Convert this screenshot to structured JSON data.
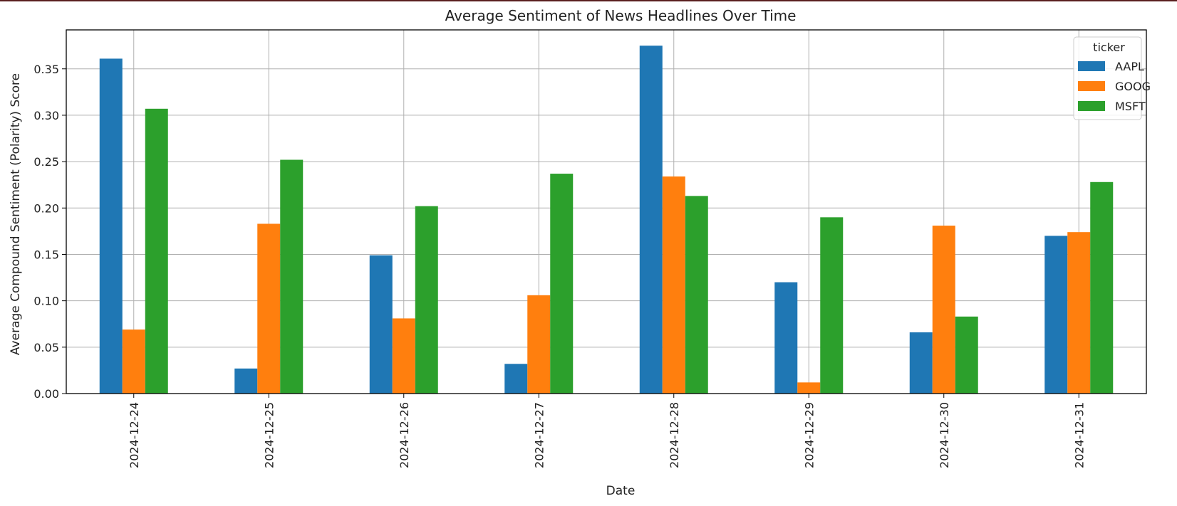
{
  "chart_data": {
    "type": "bar",
    "title": "Average Sentiment of News Headlines Over Time",
    "xlabel": "Date",
    "ylabel": "Average Compound Sentiment (Polarity) Score",
    "categories": [
      "2024-12-24",
      "2024-12-25",
      "2024-12-26",
      "2024-12-27",
      "2024-12-28",
      "2024-12-29",
      "2024-12-30",
      "2024-12-31"
    ],
    "series": [
      {
        "name": "AAPL",
        "color": "#1f77b4",
        "values": [
          0.361,
          0.027,
          0.149,
          0.032,
          0.375,
          0.12,
          0.066,
          0.17
        ]
      },
      {
        "name": "GOOG",
        "color": "#ff7f0e",
        "values": [
          0.069,
          0.183,
          0.081,
          0.106,
          0.234,
          0.012,
          0.181,
          0.174
        ]
      },
      {
        "name": "MSFT",
        "color": "#2ca02c",
        "values": [
          0.307,
          0.252,
          0.202,
          0.237,
          0.213,
          0.19,
          0.083,
          0.228
        ]
      }
    ],
    "ylim": [
      0,
      0.392
    ],
    "yticks": [
      "0.00",
      "0.05",
      "0.10",
      "0.15",
      "0.20",
      "0.25",
      "0.30",
      "0.35"
    ],
    "grid": true,
    "legend": {
      "title": "ticker",
      "position": "top-right"
    }
  }
}
